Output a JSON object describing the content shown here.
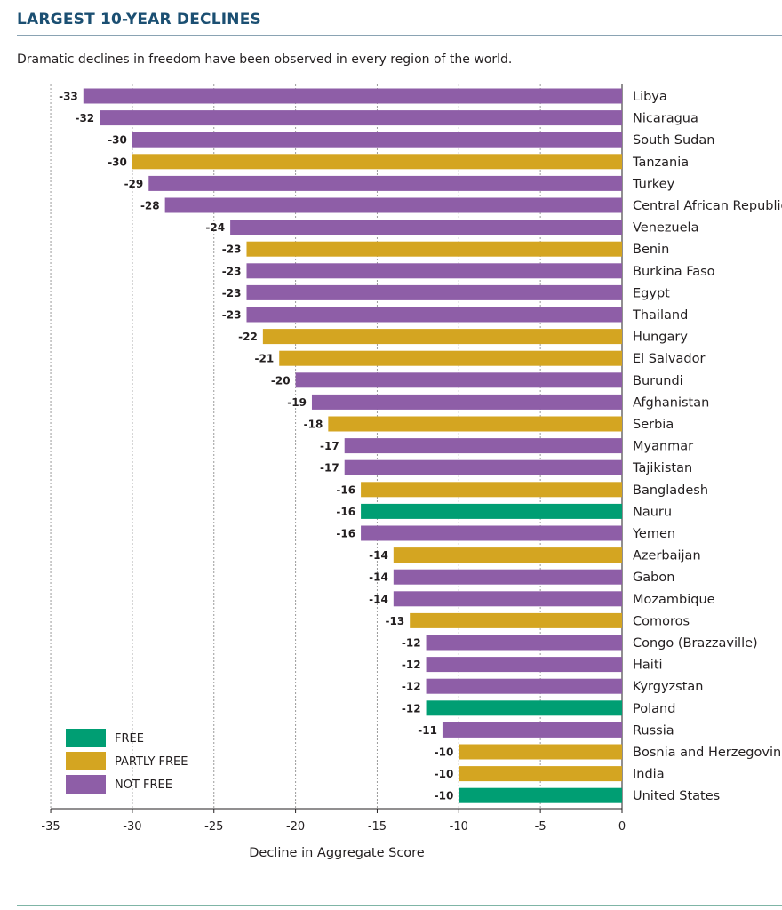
{
  "header": {
    "title": "LARGEST 10-YEAR DECLINES",
    "subtitle": "Dramatic declines in freedom have been observed in every region of the world."
  },
  "colors": {
    "free": "#009e73",
    "partly_free": "#d4a521",
    "not_free": "#8e5ea7",
    "grid": "#9a9a9a",
    "axis": "#231f20"
  },
  "chart_data": {
    "type": "bar",
    "orientation": "horizontal",
    "xlabel": "Decline in Aggregate Score",
    "xlim": [
      -35,
      0
    ],
    "xticks": [
      -35,
      -30,
      -25,
      -20,
      -15,
      -10,
      -5,
      0
    ],
    "grid": "vertical dotted",
    "legend_position": "bottom-left",
    "legend": [
      {
        "key": "free",
        "label": "FREE"
      },
      {
        "key": "partly_free",
        "label": "PARTLY FREE"
      },
      {
        "key": "not_free",
        "label": "NOT FREE"
      }
    ],
    "bars": [
      {
        "country": "Libya",
        "value": -33,
        "status": "not_free"
      },
      {
        "country": "Nicaragua",
        "value": -32,
        "status": "not_free"
      },
      {
        "country": "South Sudan",
        "value": -30,
        "status": "not_free"
      },
      {
        "country": "Tanzania",
        "value": -30,
        "status": "partly_free"
      },
      {
        "country": "Turkey",
        "value": -29,
        "status": "not_free"
      },
      {
        "country": "Central African Republic",
        "value": -28,
        "status": "not_free"
      },
      {
        "country": "Venezuela",
        "value": -24,
        "status": "not_free"
      },
      {
        "country": "Benin",
        "value": -23,
        "status": "partly_free"
      },
      {
        "country": "Burkina Faso",
        "value": -23,
        "status": "not_free"
      },
      {
        "country": "Egypt",
        "value": -23,
        "status": "not_free"
      },
      {
        "country": "Thailand",
        "value": -23,
        "status": "not_free"
      },
      {
        "country": "Hungary",
        "value": -22,
        "status": "partly_free"
      },
      {
        "country": "El Salvador",
        "value": -21,
        "status": "partly_free"
      },
      {
        "country": "Burundi",
        "value": -20,
        "status": "not_free"
      },
      {
        "country": "Afghanistan",
        "value": -19,
        "status": "not_free"
      },
      {
        "country": "Serbia",
        "value": -18,
        "status": "partly_free"
      },
      {
        "country": "Myanmar",
        "value": -17,
        "status": "not_free"
      },
      {
        "country": "Tajikistan",
        "value": -17,
        "status": "not_free"
      },
      {
        "country": "Bangladesh",
        "value": -16,
        "status": "partly_free"
      },
      {
        "country": "Nauru",
        "value": -16,
        "status": "free"
      },
      {
        "country": "Yemen",
        "value": -16,
        "status": "not_free"
      },
      {
        "country": "Azerbaijan",
        "value": -14,
        "status": "partly_free"
      },
      {
        "country": "Gabon",
        "value": -14,
        "status": "not_free"
      },
      {
        "country": "Mozambique",
        "value": -14,
        "status": "not_free"
      },
      {
        "country": "Comoros",
        "value": -13,
        "status": "partly_free"
      },
      {
        "country": "Congo (Brazzaville)",
        "value": -12,
        "status": "not_free"
      },
      {
        "country": "Haiti",
        "value": -12,
        "status": "not_free"
      },
      {
        "country": "Kyrgyzstan",
        "value": -12,
        "status": "not_free"
      },
      {
        "country": "Poland",
        "value": -12,
        "status": "free"
      },
      {
        "country": "Russia",
        "value": -11,
        "status": "not_free"
      },
      {
        "country": "Bosnia and Herzegovina",
        "value": -10,
        "status": "partly_free"
      },
      {
        "country": "India",
        "value": -10,
        "status": "partly_free"
      },
      {
        "country": "United States",
        "value": -10,
        "status": "free"
      }
    ]
  }
}
